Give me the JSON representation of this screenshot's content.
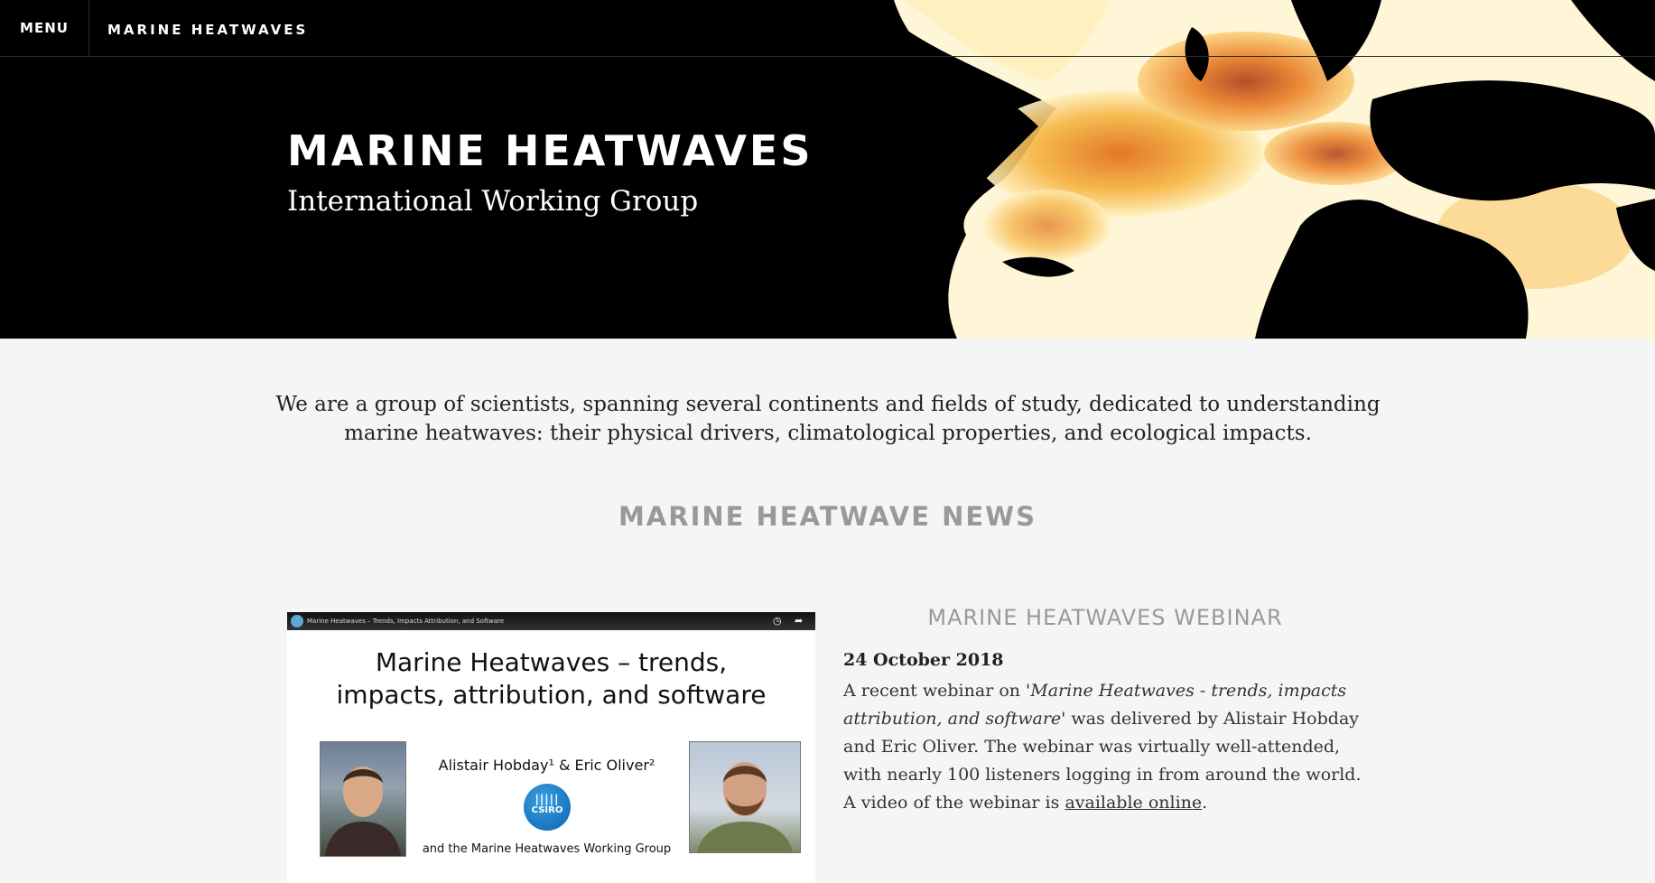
{
  "nav": {
    "menu_label": "MENU",
    "site_name": "MARINE HEATWAVES"
  },
  "hero": {
    "title": "MARINE HEATWAVES",
    "subtitle": "International Working Group"
  },
  "intro": {
    "text": "We are a group of scientists, spanning several continents and fields of study, dedicated to understanding marine heatwaves: their physical drivers, climatological properties, and ecological impacts."
  },
  "news": {
    "heading": "MARINE HEATWAVE NEWS"
  },
  "video": {
    "bar_title": "Marine Heatwaves – Trends, Impacts Attribution, and Software",
    "slide_title_line1": "Marine Heatwaves – trends,",
    "slide_title_line2": "impacts, attribution, and software",
    "authors": "Alistair Hobday¹ & Eric Oliver²",
    "logo_text": "CSIRO",
    "working_group": "and the Marine Heatwaves Working Group"
  },
  "article": {
    "title": "MARINE HEATWAVES WEBINAR",
    "date": "24 October 2018",
    "body_part1": "A recent webinar on '",
    "body_italic": "Marine Heatwaves - trends, impacts attribution, and software",
    "body_part2": "' was delivered by Alistair Hobday and Eric Oliver. The webinar was virtually well-attended, with nearly 100 listeners logging in from around the world. A video of the webinar is ",
    "link_text": "available online",
    "body_end": "."
  },
  "colors": {
    "hero_bg": "#000000",
    "page_bg": "#f5f5f5",
    "heading_gray": "#999999",
    "heat_light": "#fff3c4",
    "heat_mid": "#f5a623",
    "heat_dark": "#b8360a"
  }
}
